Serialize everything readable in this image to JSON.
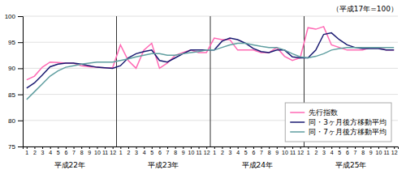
{
  "chart_data": {
    "type": "line",
    "annotation": "（平成17年=100）",
    "categories": [
      "1",
      "2",
      "3",
      "4",
      "5",
      "6",
      "7",
      "8",
      "9",
      "10",
      "11",
      "12",
      "1",
      "2",
      "3",
      "4",
      "5",
      "6",
      "7",
      "8",
      "9",
      "10",
      "11",
      "12",
      "1",
      "2",
      "3",
      "4",
      "5",
      "6",
      "7",
      "8",
      "9",
      "10",
      "11",
      "12",
      "1",
      "2",
      "3",
      "4",
      "5",
      "6",
      "7",
      "8",
      "9",
      "10",
      "11",
      "12"
    ],
    "category_groups": [
      "平成22年",
      "平成23年",
      "平成24年",
      "平成25年"
    ],
    "series": [
      {
        "name": "先行指数",
        "color": "#FF69B4",
        "values": [
          87.8,
          88.5,
          90.2,
          91.2,
          91.1,
          91.0,
          91.0,
          90.5,
          90.3,
          90.2,
          90.1,
          90.1,
          94.5,
          91.5,
          90.0,
          93.5,
          94.8,
          90.0,
          91.0,
          92.5,
          93.0,
          93.5,
          93.0,
          93.0,
          95.8,
          95.5,
          95.5,
          93.5,
          93.5,
          93.5,
          93.0,
          93.0,
          94.0,
          92.3,
          91.5,
          92.0,
          97.8,
          97.5,
          98.0,
          94.5,
          94.0,
          93.5,
          93.5,
          93.5,
          94.0,
          94.0,
          93.5,
          93.5
        ]
      },
      {
        "name": "同・3ヶ月後方移動平均",
        "color": "#191970",
        "values": [
          86.2,
          87.2,
          88.7,
          90.3,
          90.8,
          91.0,
          91.0,
          90.8,
          90.5,
          90.2,
          90.1,
          90.0,
          90.5,
          92.0,
          92.8,
          93.2,
          93.5,
          91.5,
          91.2,
          92.0,
          92.8,
          93.5,
          93.5,
          93.5,
          93.5,
          95.2,
          95.8,
          95.5,
          94.8,
          93.8,
          93.2,
          93.0,
          93.5,
          93.5,
          92.2,
          92.0,
          92.0,
          93.5,
          96.5,
          96.8,
          95.5,
          94.5,
          94.0,
          93.8,
          93.8,
          93.8,
          93.5,
          93.5
        ]
      },
      {
        "name": "同・7ヶ月後方移動平均",
        "color": "#5F9EA0",
        "values": [
          84.0,
          85.5,
          87.0,
          88.5,
          89.5,
          90.2,
          90.5,
          90.8,
          91.0,
          91.2,
          91.2,
          91.2,
          91.5,
          91.8,
          92.2,
          92.5,
          92.8,
          92.8,
          92.5,
          92.5,
          92.8,
          93.0,
          93.2,
          93.5,
          93.5,
          94.0,
          94.5,
          94.8,
          94.8,
          94.5,
          94.2,
          94.0,
          94.0,
          93.5,
          92.8,
          92.2,
          92.0,
          92.3,
          92.8,
          93.5,
          93.8,
          94.0,
          94.0,
          94.0,
          94.0,
          94.0,
          94.0,
          94.0
        ]
      }
    ],
    "ylim": [
      75,
      100
    ],
    "yticks": [
      75,
      80,
      85,
      90,
      95,
      100
    ],
    "grid": true,
    "legend": "lower right"
  }
}
